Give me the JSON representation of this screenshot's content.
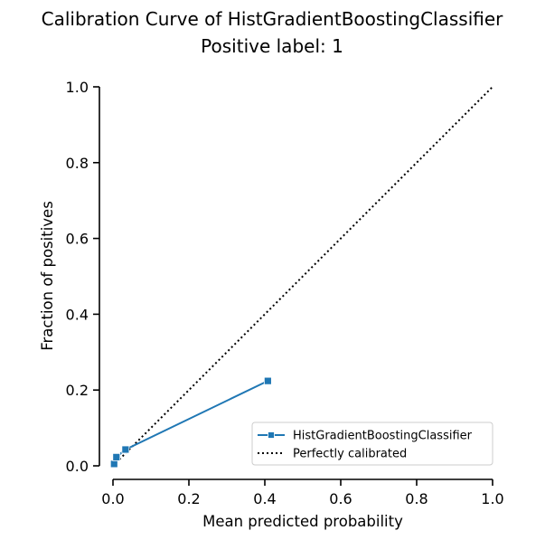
{
  "chart_data": {
    "type": "line",
    "title": "Calibration Curve of HistGradientBoostingClassifier",
    "subtitle": "Positive label: 1",
    "xlabel": "Mean predicted probability",
    "ylabel": "Fraction of positives",
    "xlim": [
      0,
      1
    ],
    "ylim": [
      0,
      1
    ],
    "xticks": [
      "0.0",
      "0.2",
      "0.4",
      "0.6",
      "0.8",
      "1.0"
    ],
    "yticks": [
      "0.0",
      "0.2",
      "0.4",
      "0.6",
      "0.8",
      "1.0"
    ],
    "grid": false,
    "legend_position": "lower-right",
    "series": [
      {
        "name": "HistGradientBoostingClassifier",
        "color": "#1f77b4",
        "style": "solid",
        "marker": "square",
        "x": [
          0.003,
          0.009,
          0.033,
          0.408
        ],
        "y": [
          0.005,
          0.023,
          0.043,
          0.224
        ]
      },
      {
        "name": "Perfectly calibrated",
        "color": "#000000",
        "style": "dotted",
        "marker": "none",
        "x": [
          0,
          1
        ],
        "y": [
          0,
          1
        ]
      }
    ]
  }
}
